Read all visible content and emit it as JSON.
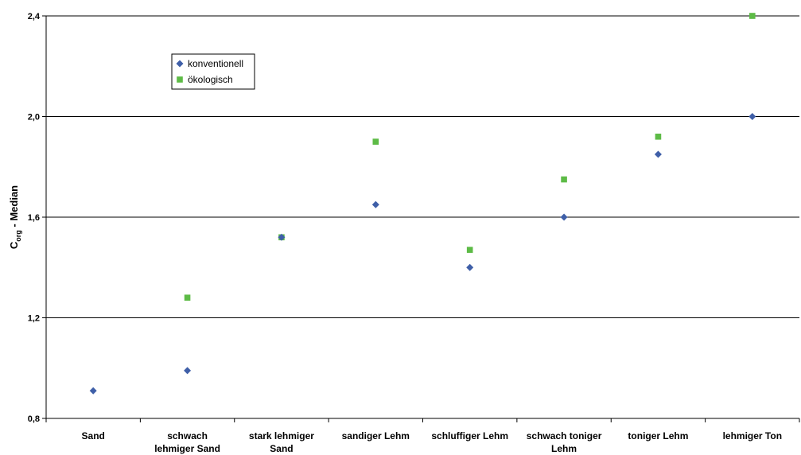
{
  "chart_data": {
    "type": "scatter",
    "ylabel": {
      "main": "C",
      "sub": "org",
      "rest": " - Median"
    },
    "ylim": [
      0.8,
      2.4
    ],
    "yticks": [
      0.8,
      1.2,
      1.6,
      2.0,
      2.4
    ],
    "ytick_labels": [
      "0,8",
      "1,2",
      "1,6",
      "2,0",
      "2,4"
    ],
    "grid": true,
    "legend_position": "top-left",
    "categories": [
      [
        "Sand"
      ],
      [
        "schwach",
        "lehmiger Sand"
      ],
      [
        "stark lehmiger",
        "Sand"
      ],
      [
        "sandiger Lehm"
      ],
      [
        "schluffiger Lehm"
      ],
      [
        "schwach toniger",
        "Lehm"
      ],
      [
        "toniger Lehm"
      ],
      [
        "lehmiger Ton"
      ]
    ],
    "series": [
      {
        "name": "konventionell",
        "marker": "diamond",
        "color": "#3F5FA8",
        "values": [
          0.91,
          0.99,
          1.52,
          1.65,
          1.4,
          1.6,
          1.85,
          2.0
        ]
      },
      {
        "name": "ökologisch",
        "marker": "square",
        "color": "#5DBB46",
        "values": [
          null,
          1.28,
          1.52,
          1.9,
          1.47,
          1.75,
          1.92,
          2.4
        ]
      }
    ]
  }
}
